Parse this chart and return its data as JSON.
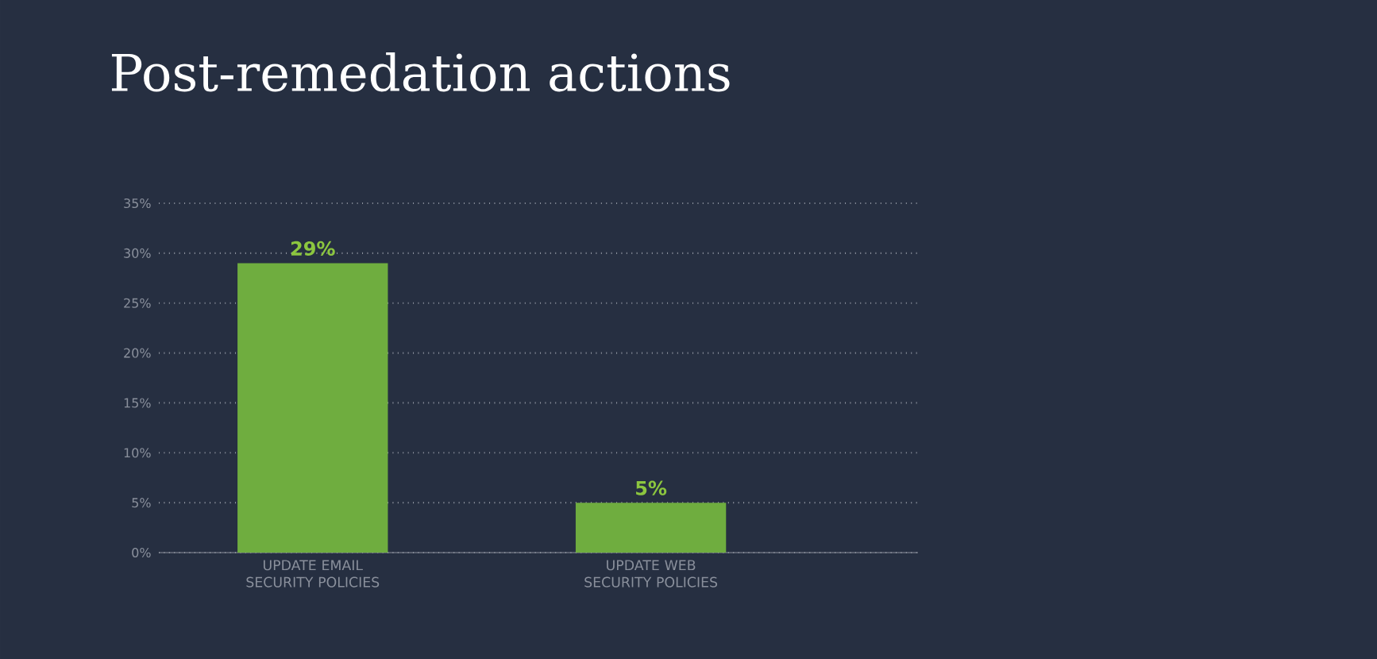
{
  "chart_data": {
    "type": "bar",
    "title": "Post-remedation actions",
    "categories": [
      "UPDATE EMAIL SECURITY POLICIES",
      "UPDATE WEB SECURITY POLICIES"
    ],
    "values": [
      29,
      5
    ],
    "color": "#6fad3f",
    "value_labels": [
      "29%",
      "5%"
    ],
    "ylim": [
      0,
      35
    ],
    "yticks": [
      {
        "value": 0,
        "label": "0%"
      },
      {
        "value": 5,
        "label": "5%"
      },
      {
        "value": 10,
        "label": "10%"
      },
      {
        "value": 15,
        "label": "15%"
      },
      {
        "value": 20,
        "label": "20%"
      },
      {
        "value": 25,
        "label": "25%"
      },
      {
        "value": 30,
        "label": "30%"
      },
      {
        "value": 35,
        "label": "35%"
      }
    ],
    "grid": "y"
  }
}
